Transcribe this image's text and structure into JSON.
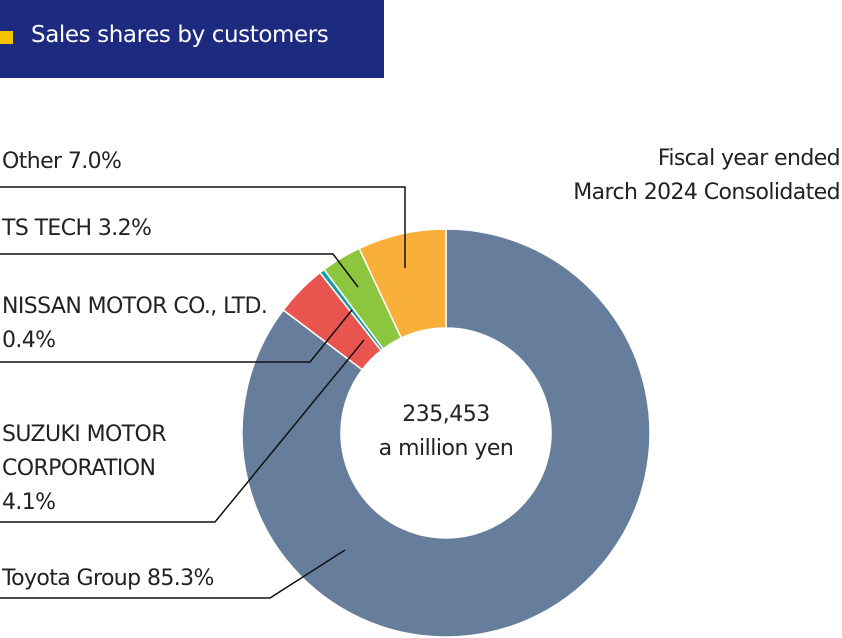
{
  "chart_data": {
    "type": "donut",
    "title": "Sales shares by customers",
    "note": [
      "Fiscal year ended",
      "March 2024 Consolidated"
    ],
    "center_text": {
      "value": 235453,
      "label": "235,453"
    },
    "center_unit": "a million yen",
    "categories": [
      "Toyota Group",
      "SUZUKI MOTOR CORPORATION",
      "NISSAN MOTOR CO., LTD.",
      "TS TECH",
      "Other"
    ],
    "values": [
      85.3,
      4.1,
      0.4,
      3.2,
      7.0
    ],
    "value_labels": [
      "85.3%",
      "4.1%",
      "0.4%",
      "3.2%",
      "7.0%"
    ],
    "colors": [
      "#667e9c",
      "#e8554e",
      "#1a9ba0",
      "#8cc63f",
      "#f8b03b"
    ]
  }
}
